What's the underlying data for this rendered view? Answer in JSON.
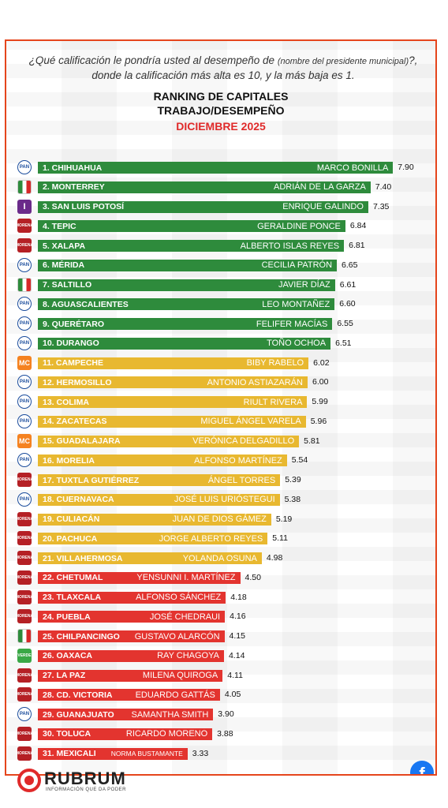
{
  "header": {
    "question_part1": "¿Qué calificación le pondría usted al desempeño de",
    "question_paren": "(nombre del presidente municipal)",
    "question_part2": "?, donde la calificación más alta es 10, y la más baja es 1.",
    "title_line1": "RANKING DE CAPITALES",
    "title_line2": "TRABAJO/DESEMPEÑO",
    "period": "DICIEMBRE 2025"
  },
  "colors": {
    "green": "#2e8b3c",
    "yellow": "#e8b830",
    "red": "#e3342f",
    "frame": "#e5451c"
  },
  "chart_data": {
    "type": "bar",
    "orientation": "horizontal",
    "xlim": [
      0,
      10
    ],
    "categories": [
      "1. CHIHUAHUA",
      "2. MONTERREY",
      "3. SAN LUIS POTOSÍ",
      "4. TEPIC",
      "5. XALAPA",
      "6. MÉRIDA",
      "7. SALTILLO",
      "8. AGUASCALIENTES",
      "9. QUERÉTARO",
      "10. DURANGO",
      "11. CAMPECHE",
      "12. HERMOSILLO",
      "13. COLIMA",
      "14. ZACATECAS",
      "15. GUADALAJARA",
      "16. MORELIA",
      "17. TUXTLA GUTIÉRREZ",
      "18. CUERNAVACA",
      "19. CULIACÁN",
      "20. PACHUCA",
      "21. VILLAHERMOSA",
      "22. CHETUMAL",
      "23. TLAXCALA",
      "24. PUEBLA",
      "25. CHILPANCINGO",
      "26. OAXACA",
      "27. LA PAZ",
      "28. CD. VICTORIA",
      "29. GUANAJUATO",
      "30. TOLUCA",
      "31. MEXICALI"
    ],
    "mayors": [
      "MARCO BONILLA",
      "ADRIÁN DE LA GARZA",
      "ENRIQUE GALINDO",
      "GERALDINE PONCE",
      "ALBERTO ISLAS REYES",
      "CECILIA PATRÓN",
      "JAVIER DÍAZ",
      "LEO MONTAÑEZ",
      "FELIFER MACÍAS",
      "TOÑO OCHOA",
      "BIBY RABELO",
      "ANTONIO ASTIAZARÁN",
      "RIULT RIVERA",
      "MIGUEL ÁNGEL VARELA",
      "VERÓNICA DELGADILLO",
      "ALFONSO MARTÍNEZ",
      "ÁNGEL TORRES",
      "JOSÉ LUIS URIÓSTEGUI",
      "JUAN DE DIOS GÁMEZ",
      "JORGE ALBERTO REYES",
      "YOLANDA OSUNA",
      "YENSUNNI I. MARTÍNEZ",
      "ALFONSO SÁNCHEZ",
      "JOSÉ CHEDRAUI",
      "GUSTAVO ALARCÓN",
      "RAY CHAGOYA",
      "MILENA QUIROGA",
      "EDUARDO GATTÁS",
      "SAMANTHA SMITH",
      "RICARDO MORENO",
      "NORMA BUSTAMANTE"
    ],
    "values": [
      7.9,
      7.4,
      7.35,
      6.84,
      6.81,
      6.65,
      6.61,
      6.6,
      6.55,
      6.51,
      6.02,
      6.0,
      5.99,
      5.96,
      5.81,
      5.54,
      5.39,
      5.38,
      5.19,
      5.11,
      4.98,
      4.5,
      4.18,
      4.16,
      4.15,
      4.14,
      4.11,
      4.05,
      3.9,
      3.88,
      3.33
    ],
    "value_labels": [
      "7.90",
      "7.40",
      "7.35",
      "6.84",
      "6.81",
      "6.65",
      "6.61",
      "6.60",
      "6.55",
      "6.51",
      "6.02",
      "6.00",
      "5.99",
      "5.96",
      "5.81",
      "5.54",
      "5.39",
      "5.38",
      "5.19",
      "5.11",
      "4.98",
      "4.50",
      "4.18",
      "4.16",
      "4.15",
      "4.14",
      "4.11",
      "4.05",
      "3.90",
      "3.88",
      "3.33"
    ],
    "bar_colors": [
      "green",
      "green",
      "green",
      "green",
      "green",
      "green",
      "green",
      "green",
      "green",
      "green",
      "yellow",
      "yellow",
      "yellow",
      "yellow",
      "yellow",
      "yellow",
      "yellow",
      "yellow",
      "yellow",
      "yellow",
      "yellow",
      "red",
      "red",
      "red",
      "red",
      "red",
      "red",
      "red",
      "red",
      "red",
      "red"
    ],
    "party_icons": [
      "pan-icon",
      "pri-icon",
      "independent-icon",
      "morena-icon",
      "morena-icon",
      "pan-icon",
      "pri-icon",
      "pan-icon",
      "pan-icon",
      "pan-icon",
      "mc-icon",
      "pan-icon",
      "pan-icon",
      "pan-icon",
      "mc-icon",
      "pan-icon",
      "morena-icon",
      "pan-icon",
      "morena-icon",
      "morena-icon",
      "morena-icon",
      "morena-icon",
      "morena-icon",
      "morena-icon",
      "pri-icon",
      "pvem-icon",
      "morena-icon",
      "morena-icon",
      "pan-icon",
      "morena-icon",
      "morena-icon"
    ],
    "party_labels": [
      "PAN",
      "",
      "I",
      "MORENA",
      "MORENA",
      "PAN",
      "",
      "PAN",
      "PAN",
      "PAN",
      "MC",
      "PAN",
      "PAN",
      "PAN",
      "MC",
      "PAN",
      "MORENA",
      "PAN",
      "MORENA",
      "MORENA",
      "MORENA",
      "MORENA",
      "MORENA",
      "MORENA",
      "",
      "VERDE",
      "MORENA",
      "MORENA",
      "PAN",
      "MORENA",
      "MORENA"
    ]
  },
  "branding": {
    "name": "RUBRUM",
    "tagline": "INFORMACIÓN QUE DA PODER",
    "social": [
      "facebook-icon",
      "instagram-icon"
    ]
  }
}
